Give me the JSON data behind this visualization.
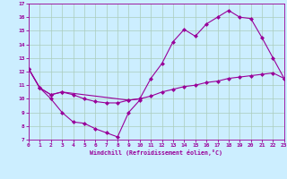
{
  "xlabel": "Windchill (Refroidissement éolien,°C)",
  "bg_color": "#cceeff",
  "line_color": "#990099",
  "grid_color": "#aaccbb",
  "xmin": 0,
  "xmax": 23,
  "ymin": 7,
  "ymax": 17,
  "line1_x": [
    0,
    1,
    2,
    3,
    4,
    5,
    6,
    7,
    8,
    9,
    10
  ],
  "line1_y": [
    12.2,
    10.8,
    10.0,
    9.0,
    8.3,
    8.2,
    7.8,
    7.5,
    7.2,
    9.0,
    9.9
  ],
  "line2_x": [
    0,
    1,
    2,
    3,
    4,
    5,
    6,
    7,
    8,
    9,
    10,
    11,
    12,
    13,
    14,
    15,
    16,
    17,
    18,
    19,
    20,
    21,
    22,
    23
  ],
  "line2_y": [
    12.2,
    10.8,
    10.3,
    10.5,
    10.3,
    10.0,
    9.8,
    9.7,
    9.7,
    9.9,
    10.0,
    10.2,
    10.5,
    10.7,
    10.9,
    11.0,
    11.2,
    11.3,
    11.5,
    11.6,
    11.7,
    11.8,
    11.9,
    11.5
  ],
  "line3_x": [
    0,
    1,
    2,
    3,
    9,
    10,
    11,
    12,
    13,
    14,
    15,
    16,
    17,
    18,
    19,
    20,
    21,
    22,
    23
  ],
  "line3_y": [
    12.2,
    10.8,
    10.3,
    10.5,
    9.9,
    10.0,
    11.5,
    12.6,
    14.2,
    15.1,
    14.6,
    15.5,
    16.0,
    16.5,
    16.0,
    15.9,
    14.5,
    13.0,
    11.5
  ],
  "marker_size": 2.5
}
